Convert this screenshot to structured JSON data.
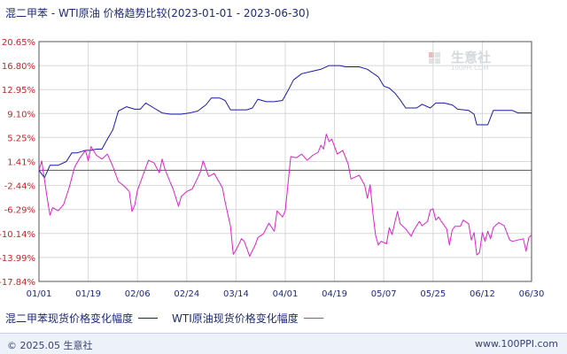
{
  "chart_data": {
    "type": "line",
    "title": "混二甲苯 - WTI原油 价格趋势比较(2023-01-01 - 2023-06-30)",
    "x_tick_labels": [
      "01/01",
      "01/19",
      "02/06",
      "02/24",
      "03/14",
      "04/01",
      "04/19",
      "05/07",
      "05/25",
      "06/12",
      "06/30"
    ],
    "x_range": [
      "2023-01-01",
      "2023-06-30"
    ],
    "y_tick_labels": [
      "20.65%",
      "16.80%",
      "12.95%",
      "9.10%",
      "5.25%",
      "1.41%",
      "-2.44%",
      "-6.29%",
      "-10.14%",
      "-13.99%",
      "-17.84%"
    ],
    "ylim": [
      -17.84,
      20.65
    ],
    "y_unit": "%",
    "grid": true,
    "legend_position": "bottom",
    "series": [
      {
        "name": "混二甲苯现货价格变化幅度",
        "color": "#1a1aaa",
        "points": [
          [
            "2023-01-01",
            0
          ],
          [
            "2023-01-03",
            -1.2
          ],
          [
            "2023-01-05",
            0.8
          ],
          [
            "2023-01-08",
            0.8
          ],
          [
            "2023-01-11",
            1.4
          ],
          [
            "2023-01-13",
            2.8
          ],
          [
            "2023-01-15",
            2.8
          ],
          [
            "2023-01-18",
            3.2
          ],
          [
            "2023-01-20",
            3.2
          ],
          [
            "2023-01-22",
            3.4
          ],
          [
            "2023-01-24",
            3.4
          ],
          [
            "2023-01-26",
            5.0
          ],
          [
            "2023-01-28",
            6.5
          ],
          [
            "2023-01-30",
            9.5
          ],
          [
            "2023-02-02",
            10.2
          ],
          [
            "2023-02-05",
            9.8
          ],
          [
            "2023-02-07",
            9.8
          ],
          [
            "2023-02-09",
            10.8
          ],
          [
            "2023-02-12",
            10.0
          ],
          [
            "2023-02-15",
            9.2
          ],
          [
            "2023-02-18",
            9.0
          ],
          [
            "2023-02-22",
            9.0
          ],
          [
            "2023-02-25",
            9.2
          ],
          [
            "2023-02-28",
            9.5
          ],
          [
            "2023-03-03",
            10.5
          ],
          [
            "2023-03-05",
            11.6
          ],
          [
            "2023-03-08",
            11.6
          ],
          [
            "2023-03-10",
            11.2
          ],
          [
            "2023-03-12",
            9.7
          ],
          [
            "2023-03-18",
            9.7
          ],
          [
            "2023-03-20",
            10.0
          ],
          [
            "2023-03-22",
            11.4
          ],
          [
            "2023-03-25",
            11.0
          ],
          [
            "2023-03-28",
            11.0
          ],
          [
            "2023-03-31",
            11.2
          ],
          [
            "2023-04-02",
            12.8
          ],
          [
            "2023-04-04",
            14.5
          ],
          [
            "2023-04-07",
            15.5
          ],
          [
            "2023-04-10",
            15.8
          ],
          [
            "2023-04-14",
            16.2
          ],
          [
            "2023-04-17",
            16.8
          ],
          [
            "2023-04-21",
            16.8
          ],
          [
            "2023-04-23",
            16.6
          ],
          [
            "2023-04-28",
            16.6
          ],
          [
            "2023-05-01",
            16.2
          ],
          [
            "2023-05-03",
            15.6
          ],
          [
            "2023-05-05",
            15.0
          ],
          [
            "2023-05-07",
            13.5
          ],
          [
            "2023-05-09",
            13.2
          ],
          [
            "2023-05-11",
            12.4
          ],
          [
            "2023-05-13",
            11.3
          ],
          [
            "2023-05-15",
            10.0
          ],
          [
            "2023-05-19",
            10.0
          ],
          [
            "2023-05-21",
            10.6
          ],
          [
            "2023-05-24",
            10.0
          ],
          [
            "2023-05-26",
            10.8
          ],
          [
            "2023-05-29",
            10.8
          ],
          [
            "2023-06-01",
            10.5
          ],
          [
            "2023-06-03",
            9.8
          ],
          [
            "2023-06-07",
            9.6
          ],
          [
            "2023-06-09",
            9.0
          ],
          [
            "2023-06-10",
            7.3
          ],
          [
            "2023-06-14",
            7.3
          ],
          [
            "2023-06-16",
            9.6
          ],
          [
            "2023-06-23",
            9.6
          ],
          [
            "2023-06-25",
            9.2
          ],
          [
            "2023-06-30",
            9.2
          ]
        ]
      },
      {
        "name": "WTI原油现货价格变化幅度",
        "color": "#e020d0",
        "points": [
          [
            "2023-01-01",
            0
          ],
          [
            "2023-01-02",
            1.5
          ],
          [
            "2023-01-03",
            -1.5
          ],
          [
            "2023-01-04",
            -4.5
          ],
          [
            "2023-01-05",
            -7.2
          ],
          [
            "2023-01-06",
            -6.0
          ],
          [
            "2023-01-08",
            -6.5
          ],
          [
            "2023-01-10",
            -5.5
          ],
          [
            "2023-01-12",
            -2.8
          ],
          [
            "2023-01-14",
            0.5
          ],
          [
            "2023-01-16",
            2.0
          ],
          [
            "2023-01-18",
            3.2
          ],
          [
            "2023-01-19",
            1.5
          ],
          [
            "2023-01-20",
            3.8
          ],
          [
            "2023-01-22",
            2.4
          ],
          [
            "2023-01-24",
            1.8
          ],
          [
            "2023-01-26",
            2.6
          ],
          [
            "2023-01-28",
            0.6
          ],
          [
            "2023-01-30",
            -1.8
          ],
          [
            "2023-02-01",
            -2.5
          ],
          [
            "2023-02-03",
            -3.4
          ],
          [
            "2023-02-04",
            -6.6
          ],
          [
            "2023-02-05",
            -5.6
          ],
          [
            "2023-02-06",
            -3.2
          ],
          [
            "2023-02-08",
            -0.8
          ],
          [
            "2023-02-10",
            1.6
          ],
          [
            "2023-02-12",
            1.2
          ],
          [
            "2023-02-14",
            -0.4
          ],
          [
            "2023-02-15",
            1.8
          ],
          [
            "2023-02-16",
            0.2
          ],
          [
            "2023-02-18",
            -2.0
          ],
          [
            "2023-02-19",
            -3.0
          ],
          [
            "2023-02-21",
            -5.8
          ],
          [
            "2023-02-22",
            -4.2
          ],
          [
            "2023-02-24",
            -3.4
          ],
          [
            "2023-02-26",
            -3.0
          ],
          [
            "2023-02-28",
            -1.2
          ],
          [
            "2023-03-01",
            -0.2
          ],
          [
            "2023-03-02",
            1.5
          ],
          [
            "2023-03-04",
            -1.0
          ],
          [
            "2023-03-06",
            -0.5
          ],
          [
            "2023-03-09",
            -2.8
          ],
          [
            "2023-03-10",
            -5.0
          ],
          [
            "2023-03-12",
            -9.0
          ],
          [
            "2023-03-13",
            -13.5
          ],
          [
            "2023-03-14",
            -12.8
          ],
          [
            "2023-03-16",
            -11.0
          ],
          [
            "2023-03-17",
            -11.4
          ],
          [
            "2023-03-19",
            -13.8
          ],
          [
            "2023-03-21",
            -12.0
          ],
          [
            "2023-03-22",
            -10.8
          ],
          [
            "2023-03-24",
            -10.2
          ],
          [
            "2023-03-26",
            -8.5
          ],
          [
            "2023-03-28",
            -9.8
          ],
          [
            "2023-03-29",
            -6.5
          ],
          [
            "2023-03-31",
            -7.5
          ],
          [
            "2023-04-01",
            -6.5
          ],
          [
            "2023-04-03",
            2.2
          ],
          [
            "2023-04-05",
            2.0
          ],
          [
            "2023-04-07",
            2.6
          ],
          [
            "2023-04-09",
            1.6
          ],
          [
            "2023-04-11",
            2.4
          ],
          [
            "2023-04-13",
            2.9
          ],
          [
            "2023-04-14",
            4.0
          ],
          [
            "2023-04-15",
            3.4
          ],
          [
            "2023-04-16",
            5.8
          ],
          [
            "2023-04-17",
            4.6
          ],
          [
            "2023-04-18",
            5.0
          ],
          [
            "2023-04-20",
            2.6
          ],
          [
            "2023-04-22",
            3.2
          ],
          [
            "2023-04-24",
            1.0
          ],
          [
            "2023-04-25",
            -1.4
          ],
          [
            "2023-04-27",
            -1.0
          ],
          [
            "2023-04-28",
            -0.8
          ],
          [
            "2023-04-30",
            -2.4
          ],
          [
            "2023-05-01",
            -4.5
          ],
          [
            "2023-05-02",
            -2.3
          ],
          [
            "2023-05-03",
            -6.8
          ],
          [
            "2023-05-04",
            -10.4
          ],
          [
            "2023-05-05",
            -12.0
          ],
          [
            "2023-05-06",
            -11.4
          ],
          [
            "2023-05-08",
            -11.8
          ],
          [
            "2023-05-09",
            -9.2
          ],
          [
            "2023-05-10",
            -10.3
          ],
          [
            "2023-05-12",
            -6.6
          ],
          [
            "2023-05-13",
            -8.6
          ],
          [
            "2023-05-15",
            -9.4
          ],
          [
            "2023-05-16",
            -10.0
          ],
          [
            "2023-05-17",
            -10.6
          ],
          [
            "2023-05-18",
            -9.6
          ],
          [
            "2023-05-20",
            -8.2
          ],
          [
            "2023-05-21",
            -8.9
          ],
          [
            "2023-05-23",
            -8.2
          ],
          [
            "2023-05-24",
            -6.4
          ],
          [
            "2023-05-25",
            -6.2
          ],
          [
            "2023-05-26",
            -8.0
          ],
          [
            "2023-05-27",
            -7.5
          ],
          [
            "2023-05-28",
            -8.2
          ],
          [
            "2023-05-30",
            -9.4
          ],
          [
            "2023-05-31",
            -12.0
          ],
          [
            "2023-06-01",
            -9.6
          ],
          [
            "2023-06-02",
            -9.0
          ],
          [
            "2023-06-04",
            -9.0
          ],
          [
            "2023-06-05",
            -8.0
          ],
          [
            "2023-06-07",
            -8.6
          ],
          [
            "2023-06-08",
            -11.2
          ],
          [
            "2023-06-09",
            -10.0
          ],
          [
            "2023-06-10",
            -13.6
          ],
          [
            "2023-06-11",
            -13.2
          ],
          [
            "2023-06-12",
            -10.0
          ],
          [
            "2023-06-13",
            -11.4
          ],
          [
            "2023-06-14",
            -9.8
          ],
          [
            "2023-06-15",
            -11.0
          ],
          [
            "2023-06-16",
            -9.2
          ],
          [
            "2023-06-18",
            -8.4
          ],
          [
            "2023-06-20",
            -8.9
          ],
          [
            "2023-06-22",
            -11.2
          ],
          [
            "2023-06-23",
            -11.4
          ],
          [
            "2023-06-25",
            -11.2
          ],
          [
            "2023-06-27",
            -11.0
          ],
          [
            "2023-06-28",
            -13.0
          ],
          [
            "2023-06-29",
            -10.8
          ],
          [
            "2023-06-30",
            -10.4
          ]
        ]
      }
    ]
  },
  "watermark": {
    "name": "生意社",
    "url": "100PPI.COM"
  },
  "footer": {
    "copyright": "© 2025.05 生意社",
    "site": "www.100PPI.com"
  }
}
